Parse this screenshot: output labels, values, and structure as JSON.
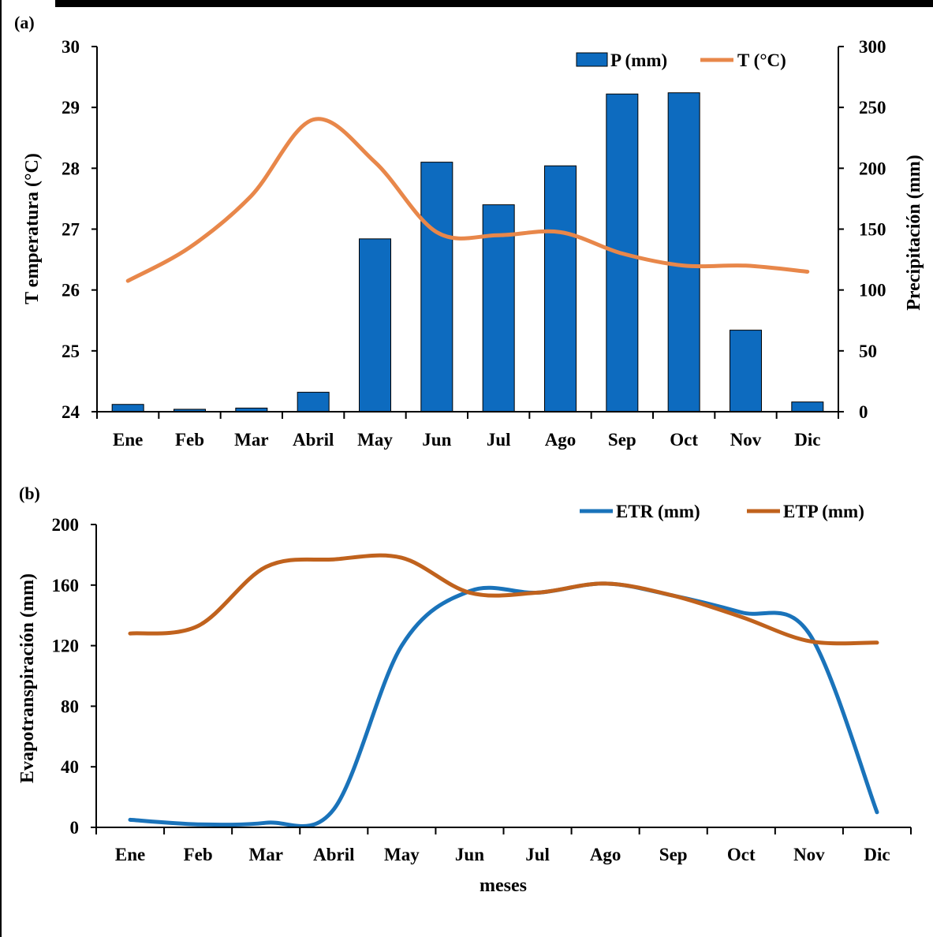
{
  "chart_data": [
    {
      "type": "bar+line",
      "panel_label": "(a)",
      "categories": [
        "Ene",
        "Feb",
        "Mar",
        "Abril",
        "May",
        "Jun",
        "Jul",
        "Ago",
        "Sep",
        "Oct",
        "Nov",
        "Dic"
      ],
      "series": [
        {
          "name": "P (mm)",
          "kind": "bar",
          "axis": "right",
          "values": [
            6,
            2,
            3,
            16,
            142,
            205,
            170,
            202,
            261,
            262,
            67,
            8
          ]
        },
        {
          "name": "T (°C)",
          "kind": "line",
          "axis": "left",
          "values": [
            26.15,
            26.7,
            27.55,
            28.8,
            28.1,
            26.95,
            26.9,
            26.95,
            26.6,
            26.4,
            26.4,
            26.3
          ]
        }
      ],
      "ylabel": "T emperatura  (°C)",
      "ylabel_right": "Precipitación  (mm)",
      "xlabel": "",
      "ylim": [
        24,
        30
      ],
      "ylim_right": [
        0,
        300
      ],
      "yticks": [
        24,
        25,
        26,
        27,
        28,
        29,
        30
      ],
      "yticks_right": [
        0,
        50,
        100,
        150,
        200,
        250,
        300
      ],
      "grid": false,
      "legend_position": "top-right",
      "colors": {
        "bar": "#0d6bbf",
        "bar_edge": "#000000",
        "line": "#e8874a"
      }
    },
    {
      "type": "line",
      "panel_label": "(b)",
      "categories": [
        "Ene",
        "Feb",
        "Mar",
        "Abril",
        "May",
        "Jun",
        "Jul",
        "Ago",
        "Sep",
        "Oct",
        "Nov",
        "Dic"
      ],
      "series": [
        {
          "name": "ETR (mm)",
          "values": [
            5,
            2,
            3,
            12,
            120,
            156,
            155,
            161,
            153,
            142,
            128,
            10
          ]
        },
        {
          "name": "ETP (mm)",
          "values": [
            128,
            133,
            172,
            177,
            178,
            155,
            155,
            161,
            153,
            139,
            123,
            122
          ]
        }
      ],
      "ylabel": "Evapotranspiración  (mm)",
      "xlabel": "meses",
      "ylim": [
        0,
        200
      ],
      "yticks": [
        0,
        40,
        80,
        120,
        160,
        200
      ],
      "grid": false,
      "legend_position": "top-right",
      "colors": {
        "ETR (mm)": "#1a73ba",
        "ETP (mm)": "#c0621d"
      }
    }
  ]
}
